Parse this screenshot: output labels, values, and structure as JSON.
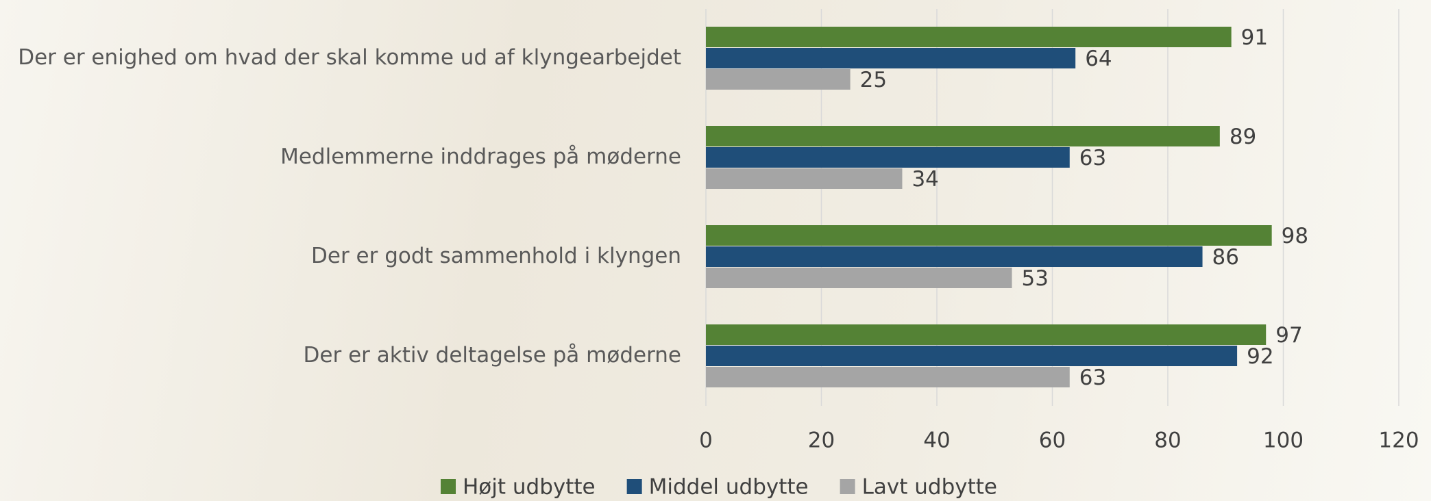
{
  "chart_data": {
    "type": "barh",
    "categories": [
      "Der er enighed om hvad der skal komme ud af klyngearbejdet",
      "Medlemmerne inddrages på møderne",
      "Der er godt sammenhold i klyngen",
      "Der er aktiv deltagelse på møderne"
    ],
    "series": [
      {
        "name": "Højt udbytte",
        "color": "#548235",
        "values": [
          91,
          89,
          98,
          97
        ]
      },
      {
        "name": "Middel udbytte",
        "color": "#1f4e79",
        "values": [
          64,
          63,
          86,
          92
        ]
      },
      {
        "name": "Lavt udbytte",
        "color": "#a5a5a5",
        "values": [
          25,
          34,
          53,
          63
        ]
      }
    ],
    "xlim": [
      0,
      120
    ],
    "xticks": [
      0,
      20,
      40,
      60,
      80,
      100,
      120
    ],
    "grid": true,
    "legend": "bottom"
  }
}
